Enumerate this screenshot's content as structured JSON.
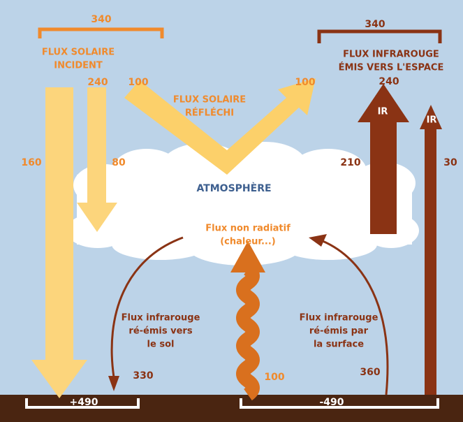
{
  "incident": {
    "total": "340",
    "label": [
      "FLUX SOLAIRE",
      "INCIDENT"
    ],
    "absorbed": "240",
    "reflected": "100"
  },
  "reflected": {
    "label": [
      "FLUX SOLAIRE",
      "RÉFLÉCHI"
    ],
    "value": "100"
  },
  "outgoing": {
    "total": "340",
    "label": [
      "FLUX INFRAROUGE",
      "ÉMIS VERS L'ESPACE"
    ],
    "value": "240",
    "arrow_labels": [
      "IR",
      "IR"
    ]
  },
  "flows": {
    "surface_solar": "160",
    "atmosphere_solar": "80",
    "atmosphere_ir": "210",
    "surface_ir_space": "30",
    "back_radiation": "330",
    "convection": "100",
    "surface_emission": "360"
  },
  "atmosphere": "ATMOSPHÈRE",
  "non_radiative": [
    "Flux non radiatif",
    "(chaleur...)"
  ],
  "back_radiation_label": [
    "Flux infrarouge",
    "ré-émis vers",
    "le sol"
  ],
  "surface_emission_label": [
    "Flux infrarouge",
    "ré-émis par",
    "la surface"
  ],
  "balance": {
    "surface": "+490",
    "atmosphere": "-490"
  }
}
